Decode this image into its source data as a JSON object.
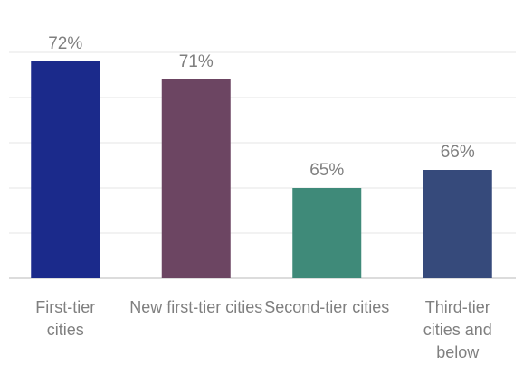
{
  "chart_data": {
    "type": "bar",
    "categories": [
      "First-tier cities",
      "New first-tier cities",
      "Second-tier cities",
      "Third-tier cities and below"
    ],
    "values": [
      72,
      71,
      65,
      66
    ],
    "value_labels": [
      "72%",
      "71%",
      "65%",
      "66%"
    ],
    "colors": [
      "#1b2a8b",
      "#6c4562",
      "#3f8a79",
      "#364a7b"
    ],
    "ylim": [
      60,
      72.5
    ],
    "yticks": [
      60,
      62.5,
      65,
      67.5,
      70,
      72.5
    ],
    "grid": true
  }
}
